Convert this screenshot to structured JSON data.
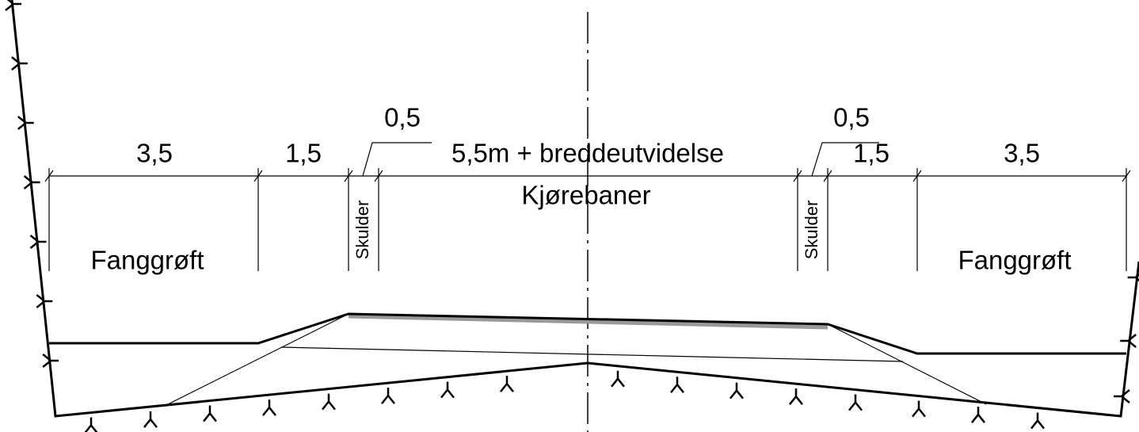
{
  "dimensions": [
    "3,5",
    "1,5",
    "0,5",
    "5,5m + breddeutvidelse",
    "0,5",
    "1,5",
    "3,5"
  ],
  "labels": {
    "roadway": "Kjørebaner",
    "shoulder_left": "Skulder",
    "shoulder_right": "Skulder",
    "ditch_left": "Fanggrøft",
    "ditch_right": "Fanggrøft"
  }
}
